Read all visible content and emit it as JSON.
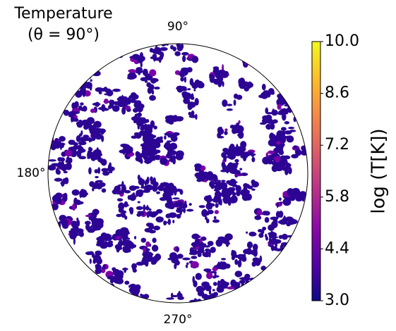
{
  "chart_data": {
    "type": "polar-map",
    "title": [
      "Temperature",
      "(θ = 90°)"
    ],
    "angle_ticks": [
      {
        "value": 90,
        "label": "90°"
      },
      {
        "value": 180,
        "label": "180°"
      },
      {
        "value": 270,
        "label": "270°"
      }
    ],
    "colorbar": {
      "label": "log (T[K])",
      "colormap": "plasma",
      "lim": [
        3,
        10
      ],
      "ticks": [
        {
          "value": 3,
          "label": "3.0"
        },
        {
          "value": 4.4,
          "label": "4.4"
        },
        {
          "value": 5.8,
          "label": "5.8"
        },
        {
          "value": 7.2,
          "label": "7.2"
        },
        {
          "value": 8.6,
          "label": "8.6"
        },
        {
          "value": 10,
          "label": "10.0"
        }
      ]
    }
  }
}
